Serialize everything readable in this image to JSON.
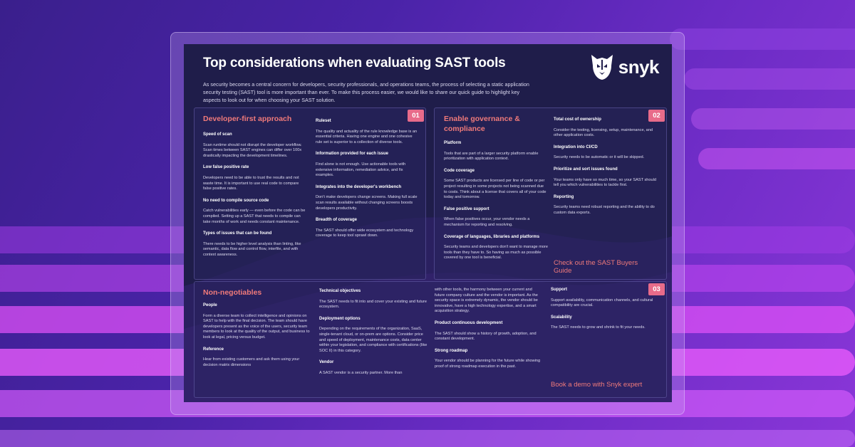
{
  "doc": {
    "title": "Top considerations when evaluating SAST tools",
    "logo_text": "snyk",
    "intro": "As security becomes a central concern for developers, security professionals, and operations teams, the process of selecting a static application security testing (SAST) tool is more important than ever. To make this process easier, we would like to share our quick guide to highlight key aspects to look out for when choosing your SAST solution."
  },
  "s1": {
    "badge": "01",
    "title": "Developer-first approach",
    "c1": [
      {
        "h": "Speed of scan",
        "p": "Scan runtime should not disrupt the developer workflow. Scan times between SAST engines can differ over 100x drastically impacting the development timelines."
      },
      {
        "h": "Low false positive rate",
        "p": "Developers need to be able to trust the results and not waste time. It is important to use real code to compare false positive rates."
      },
      {
        "h": "No need to compile source code",
        "p": "Catch vulnerabilities early — even before the code can be compiled. Setting up a SAST that needs to compile can take months of work and needs constant maintenance."
      },
      {
        "h": "Types of issues that can be found",
        "p": "There needs to be higher level analysis than linting, like semantic, data flow and control flow, interfile, and with context awareness."
      }
    ],
    "c2": [
      {
        "h": "Ruleset",
        "p": "The quality and actuality of the rule knowledge base is an essential criteria. Having one engine and one cohesive rule set is superior to a collection of diverse tools."
      },
      {
        "h": "Information provided for each issue",
        "p": "Find alone is not enough. Use actionable tools with extensive information, remediation advice, and fix examples."
      },
      {
        "h": "Integrates into the developer's workbench",
        "p": "Don't make developers change screens. Making full scale scan results available without changing screens boosts developers productivity."
      },
      {
        "h": "Breadth of coverage",
        "p": "The SAST should offer wide ecosystem and technology coverage to keep tool sprawl down."
      }
    ]
  },
  "s2": {
    "badge": "02",
    "title": "Enable governance & compliance",
    "c1": [
      {
        "h": "Platform",
        "p": "Tools that are part of a larger security platform enable prioritization with application context."
      },
      {
        "h": "Code coverage",
        "p": "Some SAST products are licensed per line of code or per project resulting in some projects not being scanned due to costs. Think about a license that covers all of your code today and tomorrow."
      },
      {
        "h": "False positive support",
        "p": "When false positives occur, your vendor needs a mechanism for reporting and resolving."
      },
      {
        "h": "Coverage of languages, libraries and platforms",
        "p": "Security teams and developers don't want to manage more tools than they have to. So having as much as possible covered by one tool is beneficial."
      }
    ],
    "c2": [
      {
        "h": "Total cost of ownership",
        "p": "Consider the testing, licensing, setup, maintenance, and other application costs."
      },
      {
        "h": "Integration into CI/CD",
        "p": "Security needs to be automatic or it will be skipped."
      },
      {
        "h": "Prioritize and sort issues found",
        "p": "Your teams only have so much time, so your SAST should tell you which vulnerabilities to tackle first."
      },
      {
        "h": "Reporting",
        "p": "Security teams need robust reporting and the ability to do custom data exports."
      }
    ],
    "cta": "Check out the SAST Buyers Guide"
  },
  "s3": {
    "badge": "03",
    "title": "Non-negotiables",
    "c1": [
      {
        "h": "People",
        "p": "Form a diverse team to collect intelligence and opinions on SAST to help with the final decision. The team should have developers present as the voice of the users, security team members to look at the quality of the output, and business to look at legal, pricing versus budget."
      },
      {
        "h": "Reference",
        "p": "Hear from existing customers and ask them using your decision matrix dimensions"
      }
    ],
    "c2": [
      {
        "h": "Technical objectives",
        "p": "The SAST needs to fit into and cover your existing and future ecosystem."
      },
      {
        "h": "Deployment options",
        "p": "Depending on the requirements of the organization, SaaS, single-tenant cloud, or on-prem are options. Consider price and speed of deployment, maintenance costs, data center within your legislation, and compliance with certifications (like SOC II) in this category."
      },
      {
        "h": "Vendor",
        "p": "A SAST vendor is a security partner. More than"
      }
    ],
    "c3_lead": "with other tools, the harmony between your current and future company culture and the vendor is important. As the security space is extremely dynamic, the vendor should be innovative, have a high technology expertise, and a smart acquisition strategy.",
    "c3": [
      {
        "h": "Product continuous development",
        "p": "The SAST should show a history of growth, adoption, and constant development."
      },
      {
        "h": "Strong roadmap",
        "p": "Your vendor should be planning for the future while showing proof of strong roadmap execution in the past."
      }
    ],
    "c4": [
      {
        "h": "Support",
        "p": "Support availability, communication channels, and cultural compatibility are crucial."
      },
      {
        "h": "Scalability",
        "p": "The SAST needs to grow and shrink to fit your needs."
      }
    ],
    "cta": "Book a demo with Snyk expert"
  },
  "colors": {
    "accent": "#f07a7a",
    "badge": "#e86b8a",
    "doc_bg": "#1f1d4a"
  }
}
